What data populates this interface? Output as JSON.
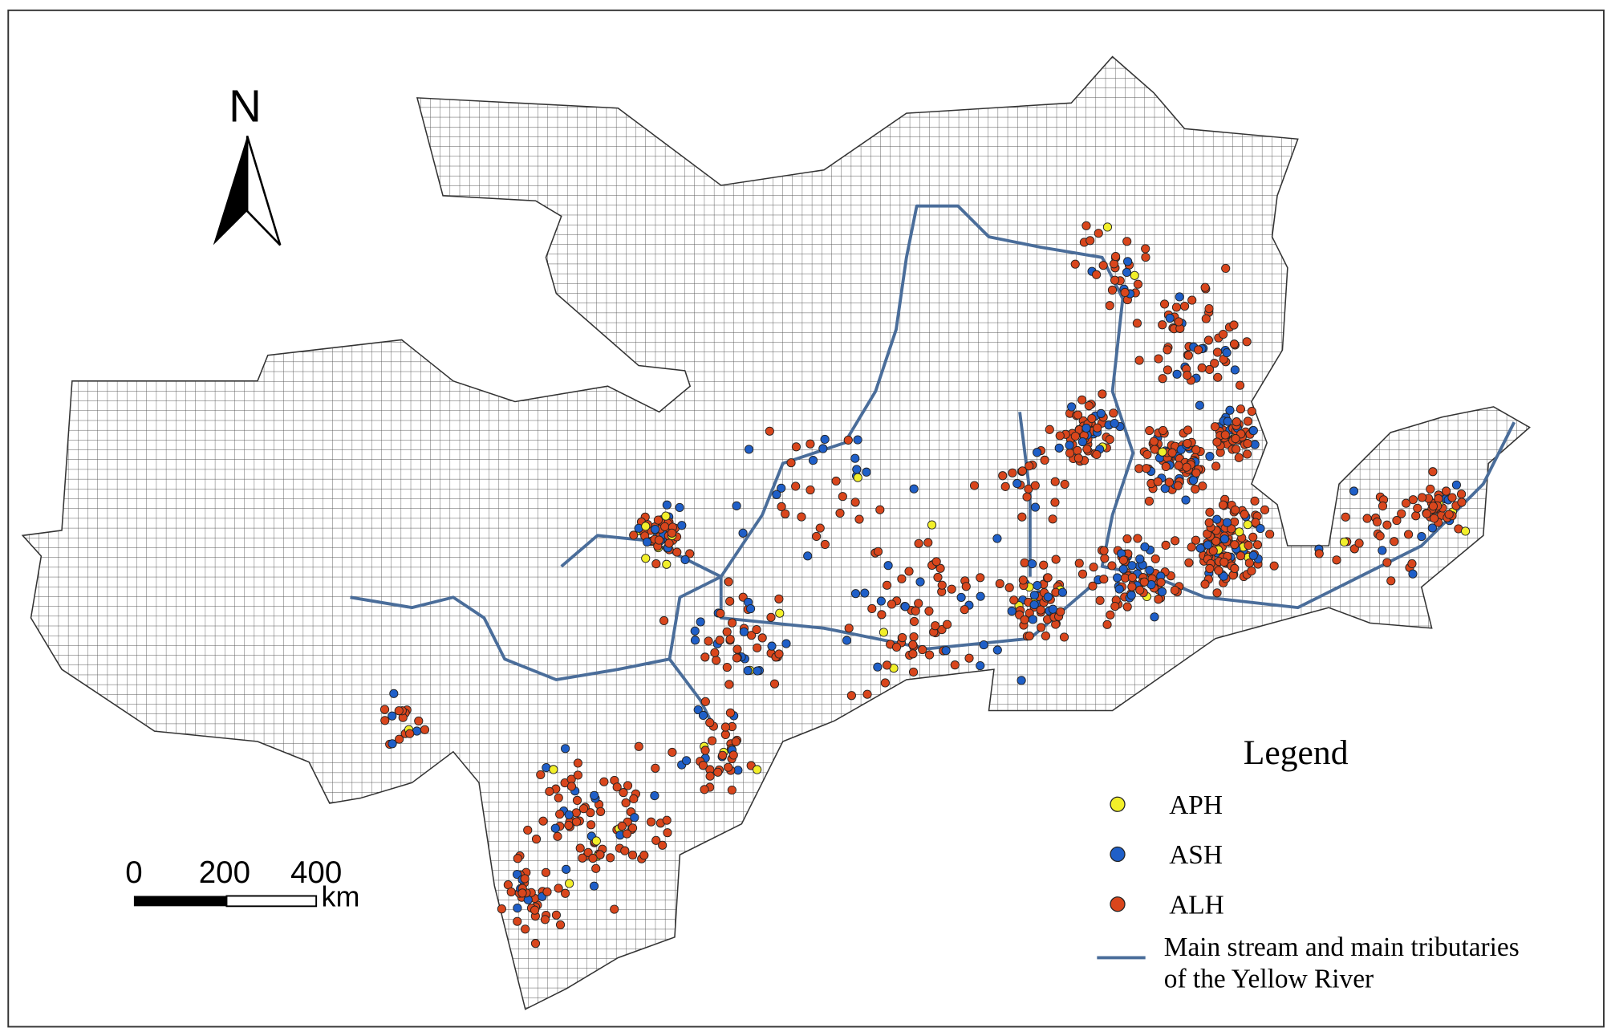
{
  "north_arrow": {
    "label": "N"
  },
  "scale_bar": {
    "labels": [
      "0",
      "200",
      "400"
    ],
    "unit": "km"
  },
  "legend": {
    "title": "Legend",
    "items": [
      {
        "label": "APH",
        "color": "#f2ef2a"
      },
      {
        "label": "ASH",
        "color": "#1f5fc8"
      },
      {
        "label": "ALH",
        "color": "#d9461c"
      }
    ],
    "river": {
      "label_lines": [
        "Main stream and main tributaries",
        "of the Yellow River"
      ],
      "color": "#4a6d9a"
    }
  }
}
